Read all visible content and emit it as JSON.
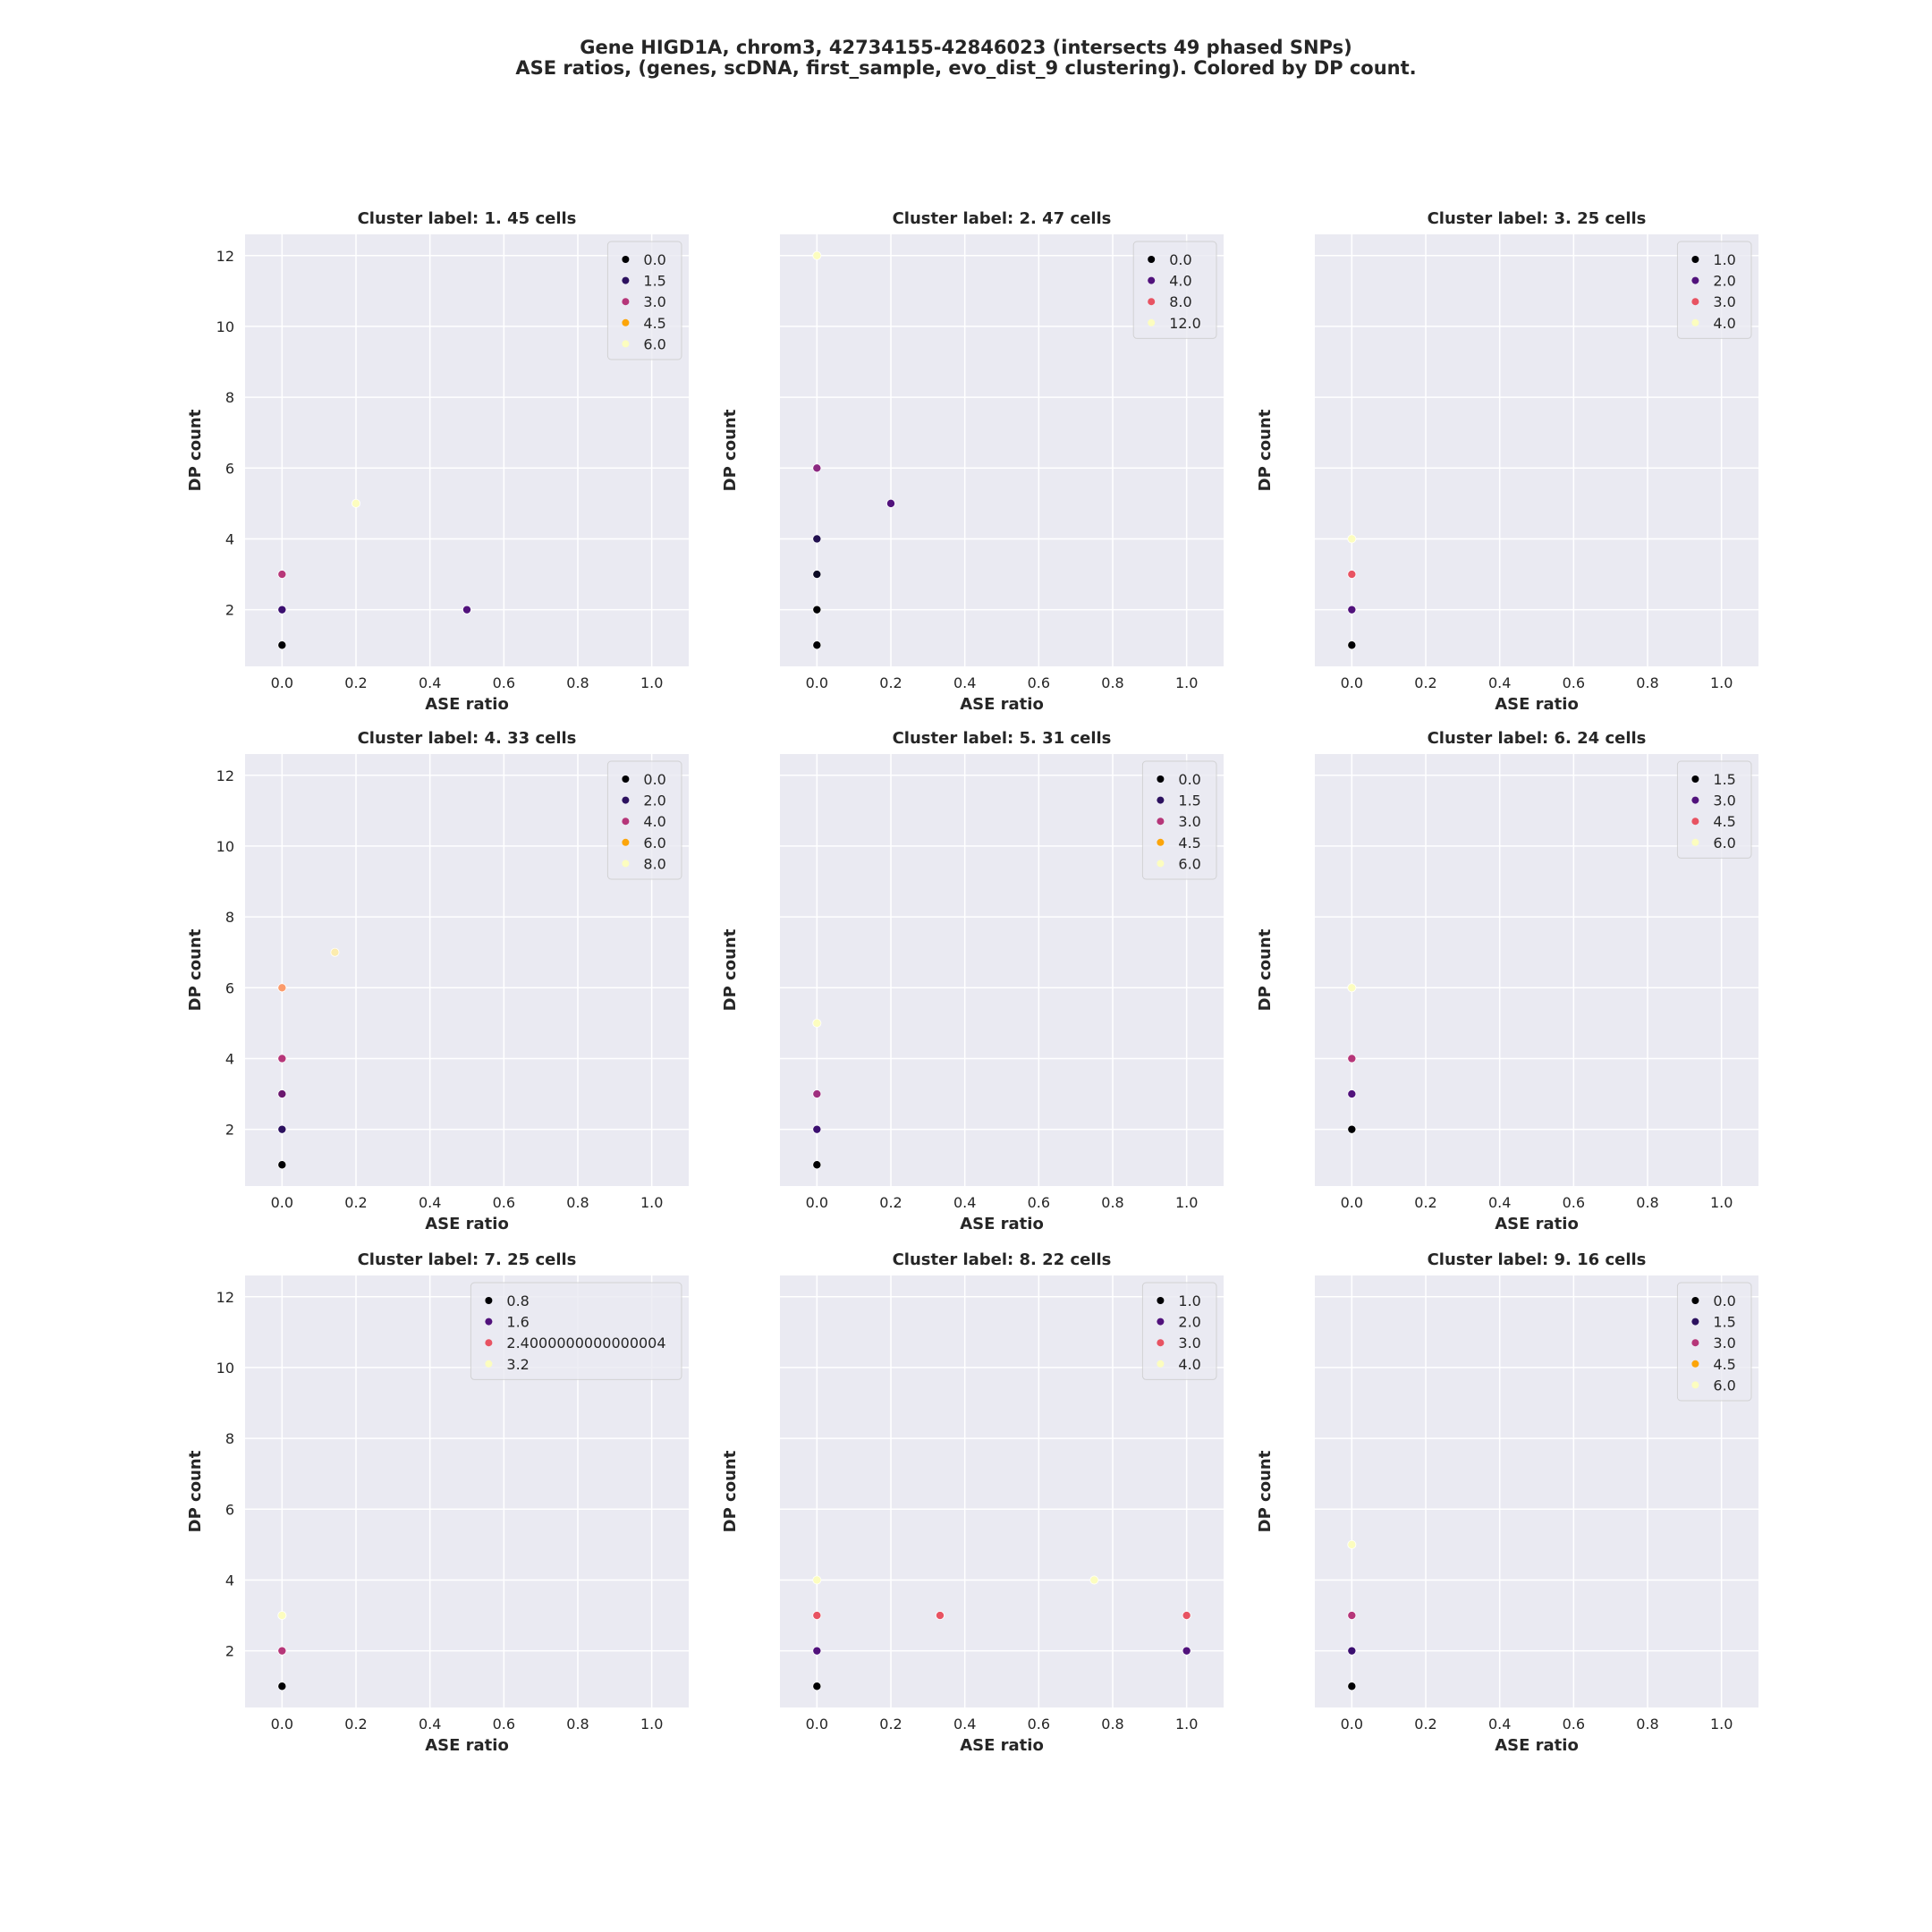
{
  "figure": {
    "title_line1": "Gene HIGD1A, chrom3, 42734155-42846023 (intersects 49 phased SNPs)",
    "title_line2": "ASE ratios, (genes, scDNA, first_sample, evo_dist_9 clustering). Colored by DP count."
  },
  "chart_data": [
    {
      "type": "scatter",
      "title": "Cluster label: 1. 45 cells",
      "xlabel": "ASE ratio",
      "ylabel": "DP count",
      "xlim": [
        -0.1,
        1.1
      ],
      "ylim": [
        0.4,
        12.6
      ],
      "xticks": [
        "0.0",
        "0.2",
        "0.4",
        "0.6",
        "0.8",
        "1.0"
      ],
      "yticks": [
        "2",
        "4",
        "6",
        "8",
        "10",
        "12"
      ],
      "legend": {
        "position": "upper right",
        "entries": [
          "0.0",
          "1.5",
          "3.0",
          "4.5",
          "6.0"
        ],
        "colors": [
          "#000004",
          "#2c115f",
          "#b63679",
          "#fca50a",
          "#fcfdbf"
        ]
      },
      "points": [
        {
          "x": 0.0,
          "y": 1,
          "color": "#000004"
        },
        {
          "x": 0.0,
          "y": 2,
          "color": "#3b0f70"
        },
        {
          "x": 0.5,
          "y": 2,
          "color": "#51127c"
        },
        {
          "x": 0.0,
          "y": 3,
          "color": "#b73779"
        },
        {
          "x": 0.2,
          "y": 5,
          "color": "#fcfdbf"
        }
      ]
    },
    {
      "type": "scatter",
      "title": "Cluster label: 2. 47 cells",
      "xlabel": "ASE ratio",
      "ylabel": "DP count",
      "xlim": [
        -0.1,
        1.1
      ],
      "ylim": [
        0.4,
        12.6
      ],
      "xticks": [
        "0.0",
        "0.2",
        "0.4",
        "0.6",
        "0.8",
        "1.0"
      ],
      "yticks": [],
      "legend": {
        "position": "upper right",
        "entries": [
          "0.0",
          "4.0",
          "8.0",
          "12.0"
        ],
        "colors": [
          "#000004",
          "#51127c",
          "#e85362",
          "#fcfdbf"
        ]
      },
      "points": [
        {
          "x": 0.0,
          "y": 1,
          "color": "#000004"
        },
        {
          "x": 0.0,
          "y": 2,
          "color": "#000004"
        },
        {
          "x": 0.0,
          "y": 3,
          "color": "#0b0924"
        },
        {
          "x": 0.0,
          "y": 4,
          "color": "#221150"
        },
        {
          "x": 0.2,
          "y": 5,
          "color": "#51127c"
        },
        {
          "x": 0.0,
          "y": 6,
          "color": "#8c2981"
        },
        {
          "x": 0.0,
          "y": 12,
          "color": "#fcfdbf"
        }
      ]
    },
    {
      "type": "scatter",
      "title": "Cluster label: 3. 25 cells",
      "xlabel": "ASE ratio",
      "ylabel": "DP count",
      "xlim": [
        -0.1,
        1.1
      ],
      "ylim": [
        0.4,
        12.6
      ],
      "xticks": [
        "0.0",
        "0.2",
        "0.4",
        "0.6",
        "0.8",
        "1.0"
      ],
      "yticks": [],
      "legend": {
        "position": "upper right",
        "entries": [
          "1.0",
          "2.0",
          "3.0",
          "4.0"
        ],
        "colors": [
          "#000004",
          "#51127c",
          "#e85362",
          "#fcfdbf"
        ]
      },
      "points": [
        {
          "x": 0.0,
          "y": 1,
          "color": "#000004"
        },
        {
          "x": 0.0,
          "y": 2,
          "color": "#51127c"
        },
        {
          "x": 0.0,
          "y": 3,
          "color": "#e85362"
        },
        {
          "x": 0.0,
          "y": 4,
          "color": "#fcfdbf"
        }
      ]
    },
    {
      "type": "scatter",
      "title": "Cluster label: 4. 33 cells",
      "xlabel": "ASE ratio",
      "ylabel": "DP count",
      "xlim": [
        -0.1,
        1.1
      ],
      "ylim": [
        0.4,
        12.6
      ],
      "xticks": [
        "0.0",
        "0.2",
        "0.4",
        "0.6",
        "0.8",
        "1.0"
      ],
      "yticks": [
        "2",
        "4",
        "6",
        "8",
        "10",
        "12"
      ],
      "legend": {
        "position": "upper right",
        "entries": [
          "0.0",
          "2.0",
          "4.0",
          "6.0",
          "8.0"
        ],
        "colors": [
          "#000004",
          "#2c115f",
          "#b63679",
          "#fca50a",
          "#fcfdbf"
        ]
      },
      "points": [
        {
          "x": 0.0,
          "y": 1,
          "color": "#000004"
        },
        {
          "x": 0.0,
          "y": 2,
          "color": "#2c115f"
        },
        {
          "x": 0.0,
          "y": 3,
          "color": "#6a176e"
        },
        {
          "x": 0.0,
          "y": 4,
          "color": "#b63679"
        },
        {
          "x": 0.0,
          "y": 6,
          "color": "#fb9b6b"
        },
        {
          "x": 0.143,
          "y": 7,
          "color": "#fcecae"
        }
      ]
    },
    {
      "type": "scatter",
      "title": "Cluster label: 5. 31 cells",
      "xlabel": "ASE ratio",
      "ylabel": "DP count",
      "xlim": [
        -0.1,
        1.1
      ],
      "ylim": [
        0.4,
        12.6
      ],
      "xticks": [
        "0.0",
        "0.2",
        "0.4",
        "0.6",
        "0.8",
        "1.0"
      ],
      "yticks": [],
      "legend": {
        "position": "upper right",
        "entries": [
          "0.0",
          "1.5",
          "3.0",
          "4.5",
          "6.0"
        ],
        "colors": [
          "#000004",
          "#2c115f",
          "#b63679",
          "#fca50a",
          "#fcfdbf"
        ]
      },
      "points": [
        {
          "x": 0.0,
          "y": 1,
          "color": "#000004"
        },
        {
          "x": 0.0,
          "y": 2,
          "color": "#3b0f70"
        },
        {
          "x": 0.0,
          "y": 3,
          "color": "#9f2f7f"
        },
        {
          "x": 0.0,
          "y": 5,
          "color": "#fcfdbf"
        }
      ]
    },
    {
      "type": "scatter",
      "title": "Cluster label: 6. 24 cells",
      "xlabel": "ASE ratio",
      "ylabel": "DP count",
      "xlim": [
        -0.1,
        1.1
      ],
      "ylim": [
        0.4,
        12.6
      ],
      "xticks": [
        "0.0",
        "0.2",
        "0.4",
        "0.6",
        "0.8",
        "1.0"
      ],
      "yticks": [],
      "legend": {
        "position": "upper right",
        "entries": [
          "1.5",
          "3.0",
          "4.5",
          "6.0"
        ],
        "colors": [
          "#000004",
          "#51127c",
          "#e85362",
          "#fcfdbf"
        ]
      },
      "points": [
        {
          "x": 0.0,
          "y": 2,
          "color": "#000004"
        },
        {
          "x": 0.0,
          "y": 3,
          "color": "#51127c"
        },
        {
          "x": 0.0,
          "y": 4,
          "color": "#b63679"
        },
        {
          "x": 0.0,
          "y": 6,
          "color": "#fcfdbf"
        }
      ]
    },
    {
      "type": "scatter",
      "title": "Cluster label: 7. 25 cells",
      "xlabel": "ASE ratio",
      "ylabel": "DP count",
      "xlim": [
        -0.1,
        1.1
      ],
      "ylim": [
        0.4,
        12.6
      ],
      "xticks": [
        "0.0",
        "0.2",
        "0.4",
        "0.6",
        "0.8",
        "1.0"
      ],
      "yticks": [
        "2",
        "4",
        "6",
        "8",
        "10",
        "12"
      ],
      "legend": {
        "position": "upper right",
        "entries": [
          "0.8",
          "1.6",
          "2.4000000000000004",
          "3.2"
        ],
        "colors": [
          "#000004",
          "#51127c",
          "#e85362",
          "#fcfdbf"
        ]
      },
      "points": [
        {
          "x": 0.0,
          "y": 1,
          "color": "#000004"
        },
        {
          "x": 0.0,
          "y": 2,
          "color": "#b63679"
        },
        {
          "x": 0.0,
          "y": 3,
          "color": "#fcfdbf"
        }
      ]
    },
    {
      "type": "scatter",
      "title": "Cluster label: 8. 22 cells",
      "xlabel": "ASE ratio",
      "ylabel": "DP count",
      "xlim": [
        -0.1,
        1.1
      ],
      "ylim": [
        0.4,
        12.6
      ],
      "xticks": [
        "0.0",
        "0.2",
        "0.4",
        "0.6",
        "0.8",
        "1.0"
      ],
      "yticks": [],
      "legend": {
        "position": "upper right",
        "entries": [
          "1.0",
          "2.0",
          "3.0",
          "4.0"
        ],
        "colors": [
          "#000004",
          "#51127c",
          "#e85362",
          "#fcfdbf"
        ]
      },
      "points": [
        {
          "x": 0.0,
          "y": 1,
          "color": "#000004"
        },
        {
          "x": 0.0,
          "y": 2,
          "color": "#51127c"
        },
        {
          "x": 1.0,
          "y": 2,
          "color": "#51127c"
        },
        {
          "x": 0.0,
          "y": 3,
          "color": "#e85362"
        },
        {
          "x": 0.333,
          "y": 3,
          "color": "#e85362"
        },
        {
          "x": 1.0,
          "y": 3,
          "color": "#e85362"
        },
        {
          "x": 0.0,
          "y": 4,
          "color": "#fcfdbf"
        },
        {
          "x": 0.75,
          "y": 4,
          "color": "#fcfdbf"
        }
      ]
    },
    {
      "type": "scatter",
      "title": "Cluster label: 9. 16 cells",
      "xlabel": "ASE ratio",
      "ylabel": "DP count",
      "xlim": [
        -0.1,
        1.1
      ],
      "ylim": [
        0.4,
        12.6
      ],
      "xticks": [
        "0.0",
        "0.2",
        "0.4",
        "0.6",
        "0.8",
        "1.0"
      ],
      "yticks": [],
      "legend": {
        "position": "upper right",
        "entries": [
          "0.0",
          "1.5",
          "3.0",
          "4.5",
          "6.0"
        ],
        "colors": [
          "#000004",
          "#2c115f",
          "#b63679",
          "#fca50a",
          "#fcfdbf"
        ]
      },
      "points": [
        {
          "x": 0.0,
          "y": 1,
          "color": "#000004"
        },
        {
          "x": 0.0,
          "y": 2,
          "color": "#3b0f70"
        },
        {
          "x": 0.0,
          "y": 3,
          "color": "#b63679"
        },
        {
          "x": 0.0,
          "y": 5,
          "color": "#fcfdbf"
        }
      ]
    }
  ]
}
